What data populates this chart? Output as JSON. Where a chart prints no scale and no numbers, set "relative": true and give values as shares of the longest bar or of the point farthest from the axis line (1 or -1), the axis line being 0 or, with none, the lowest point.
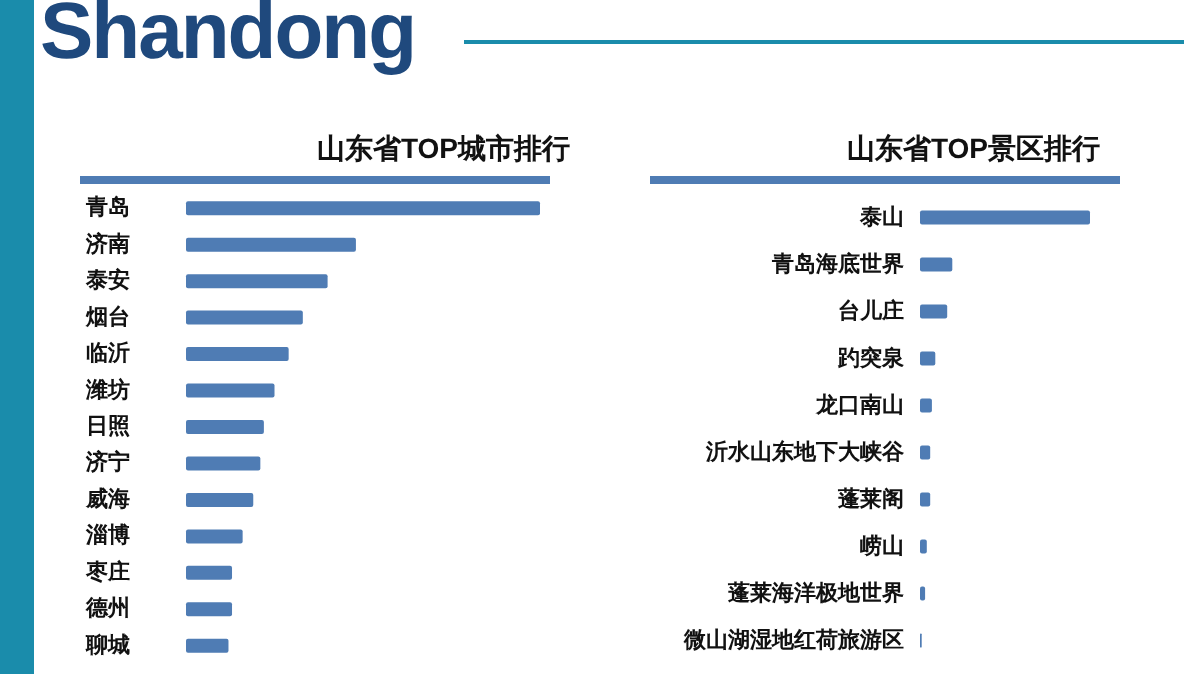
{
  "chart_data": [
    {
      "type": "bar",
      "orientation": "horizontal",
      "relative": true,
      "title": "山东省TOP城市排行",
      "annotations": [
        "Shandong"
      ],
      "color": "#4f7cb4",
      "categories": [
        "青岛",
        "济南",
        "泰安",
        "烟台",
        "临沂",
        "潍坊",
        "日照",
        "济宁",
        "威海",
        "淄博",
        "枣庄",
        "德州",
        "聊城"
      ],
      "values": [
        1,
        0.48,
        0.4,
        0.33,
        0.29,
        0.25,
        0.22,
        0.21,
        0.19,
        0.16,
        0.13,
        0.13,
        0.12
      ]
    },
    {
      "type": "bar",
      "orientation": "horizontal",
      "relative": true,
      "title": "山东省TOP景区排行",
      "color": "#4f7cb4",
      "categories": [
        "泰山",
        "青岛海底世界",
        "台儿庄",
        "趵突泉",
        "龙口南山",
        "沂水山东地下大峡谷",
        "蓬莱阁",
        "崂山",
        "蓬莱海洋极地世界",
        "微山湖湿地红荷旅游区"
      ],
      "values": [
        1,
        0.19,
        0.16,
        0.09,
        0.07,
        0.06,
        0.06,
        0.04,
        0.03,
        0.01
      ]
    }
  ]
}
